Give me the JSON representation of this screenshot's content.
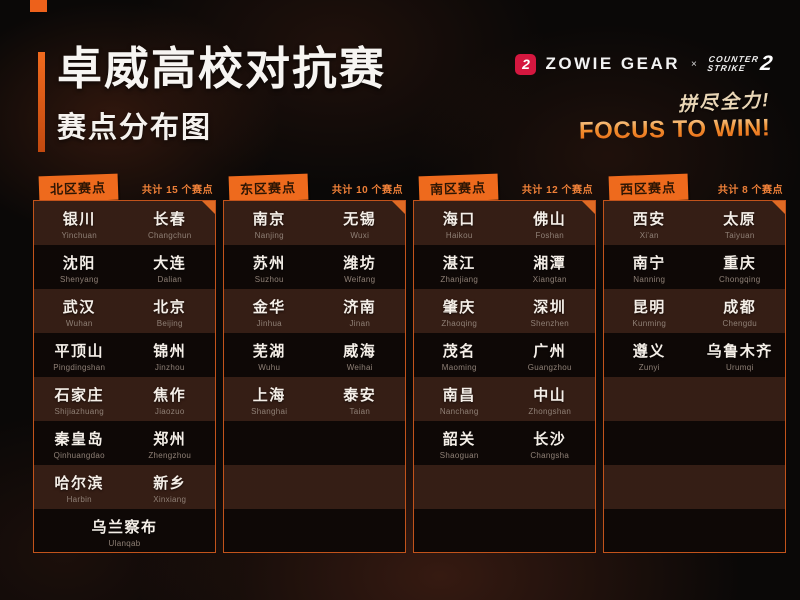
{
  "header": {
    "title": "卓威高校对抗赛",
    "subtitle": "赛点分布图"
  },
  "brand": {
    "zowie_mark": "2",
    "zowie_text": "ZOWIE GEAR",
    "collab_x": "×",
    "cs_line1": "COUNTER",
    "cs_line2": "STRIKE",
    "cs_number": "2"
  },
  "slogan": {
    "cn": "拼尽全力!",
    "en": "FOCUS TO WIN!"
  },
  "colors": {
    "accent_orange": "#ee6a1d",
    "panel_border": "#c2531b",
    "zowie_red": "#d5173f",
    "count_text": "#ef8038"
  },
  "regions": [
    {
      "name": "北区赛点",
      "count_label": "共计 15 个赛点",
      "cities": [
        {
          "name": "银川",
          "pinyin": "Yinchuan"
        },
        {
          "name": "长春",
          "pinyin": "Changchun"
        },
        {
          "name": "沈阳",
          "pinyin": "Shenyang"
        },
        {
          "name": "大连",
          "pinyin": "Dalian"
        },
        {
          "name": "武汉",
          "pinyin": "Wuhan"
        },
        {
          "name": "北京",
          "pinyin": "Beijing"
        },
        {
          "name": "平顶山",
          "pinyin": "Pingdingshan"
        },
        {
          "name": "锦州",
          "pinyin": "Jinzhou"
        },
        {
          "name": "石家庄",
          "pinyin": "Shijiazhuang"
        },
        {
          "name": "焦作",
          "pinyin": "Jiaozuo"
        },
        {
          "name": "秦皇岛",
          "pinyin": "Qinhuangdao"
        },
        {
          "name": "郑州",
          "pinyin": "Zhengzhou"
        },
        {
          "name": "哈尔滨",
          "pinyin": "Harbin"
        },
        {
          "name": "新乡",
          "pinyin": "Xinxiang"
        },
        {
          "name": "乌兰察布",
          "pinyin": "Ulanqab",
          "span": 2
        }
      ]
    },
    {
      "name": "东区赛点",
      "count_label": "共计 10 个赛点",
      "cities": [
        {
          "name": "南京",
          "pinyin": "Nanjing"
        },
        {
          "name": "无锡",
          "pinyin": "Wuxi"
        },
        {
          "name": "苏州",
          "pinyin": "Suzhou"
        },
        {
          "name": "潍坊",
          "pinyin": "Weifang"
        },
        {
          "name": "金华",
          "pinyin": "Jinhua"
        },
        {
          "name": "济南",
          "pinyin": "Jinan"
        },
        {
          "name": "芜湖",
          "pinyin": "Wuhu"
        },
        {
          "name": "威海",
          "pinyin": "Weihai"
        },
        {
          "name": "上海",
          "pinyin": "Shanghai"
        },
        {
          "name": "泰安",
          "pinyin": "Taian"
        }
      ]
    },
    {
      "name": "南区赛点",
      "count_label": "共计 12 个赛点",
      "cities": [
        {
          "name": "海口",
          "pinyin": "Haikou"
        },
        {
          "name": "佛山",
          "pinyin": "Foshan"
        },
        {
          "name": "湛江",
          "pinyin": "Zhanjiang"
        },
        {
          "name": "湘潭",
          "pinyin": "Xiangtan"
        },
        {
          "name": "肇庆",
          "pinyin": "Zhaoqing"
        },
        {
          "name": "深圳",
          "pinyin": "Shenzhen"
        },
        {
          "name": "茂名",
          "pinyin": "Maoming"
        },
        {
          "name": "广州",
          "pinyin": "Guangzhou"
        },
        {
          "name": "南昌",
          "pinyin": "Nanchang"
        },
        {
          "name": "中山",
          "pinyin": "Zhongshan"
        },
        {
          "name": "韶关",
          "pinyin": "Shaoguan"
        },
        {
          "name": "长沙",
          "pinyin": "Changsha"
        }
      ]
    },
    {
      "name": "西区赛点",
      "count_label": "共计 8 个赛点",
      "cities": [
        {
          "name": "西安",
          "pinyin": "Xi'an"
        },
        {
          "name": "太原",
          "pinyin": "Taiyuan"
        },
        {
          "name": "南宁",
          "pinyin": "Nanning"
        },
        {
          "name": "重庆",
          "pinyin": "Chongqing"
        },
        {
          "name": "昆明",
          "pinyin": "Kunming"
        },
        {
          "name": "成都",
          "pinyin": "Chengdu"
        },
        {
          "name": "遵义",
          "pinyin": "Zunyi"
        },
        {
          "name": "乌鲁木齐",
          "pinyin": "Urumqi"
        }
      ]
    }
  ]
}
